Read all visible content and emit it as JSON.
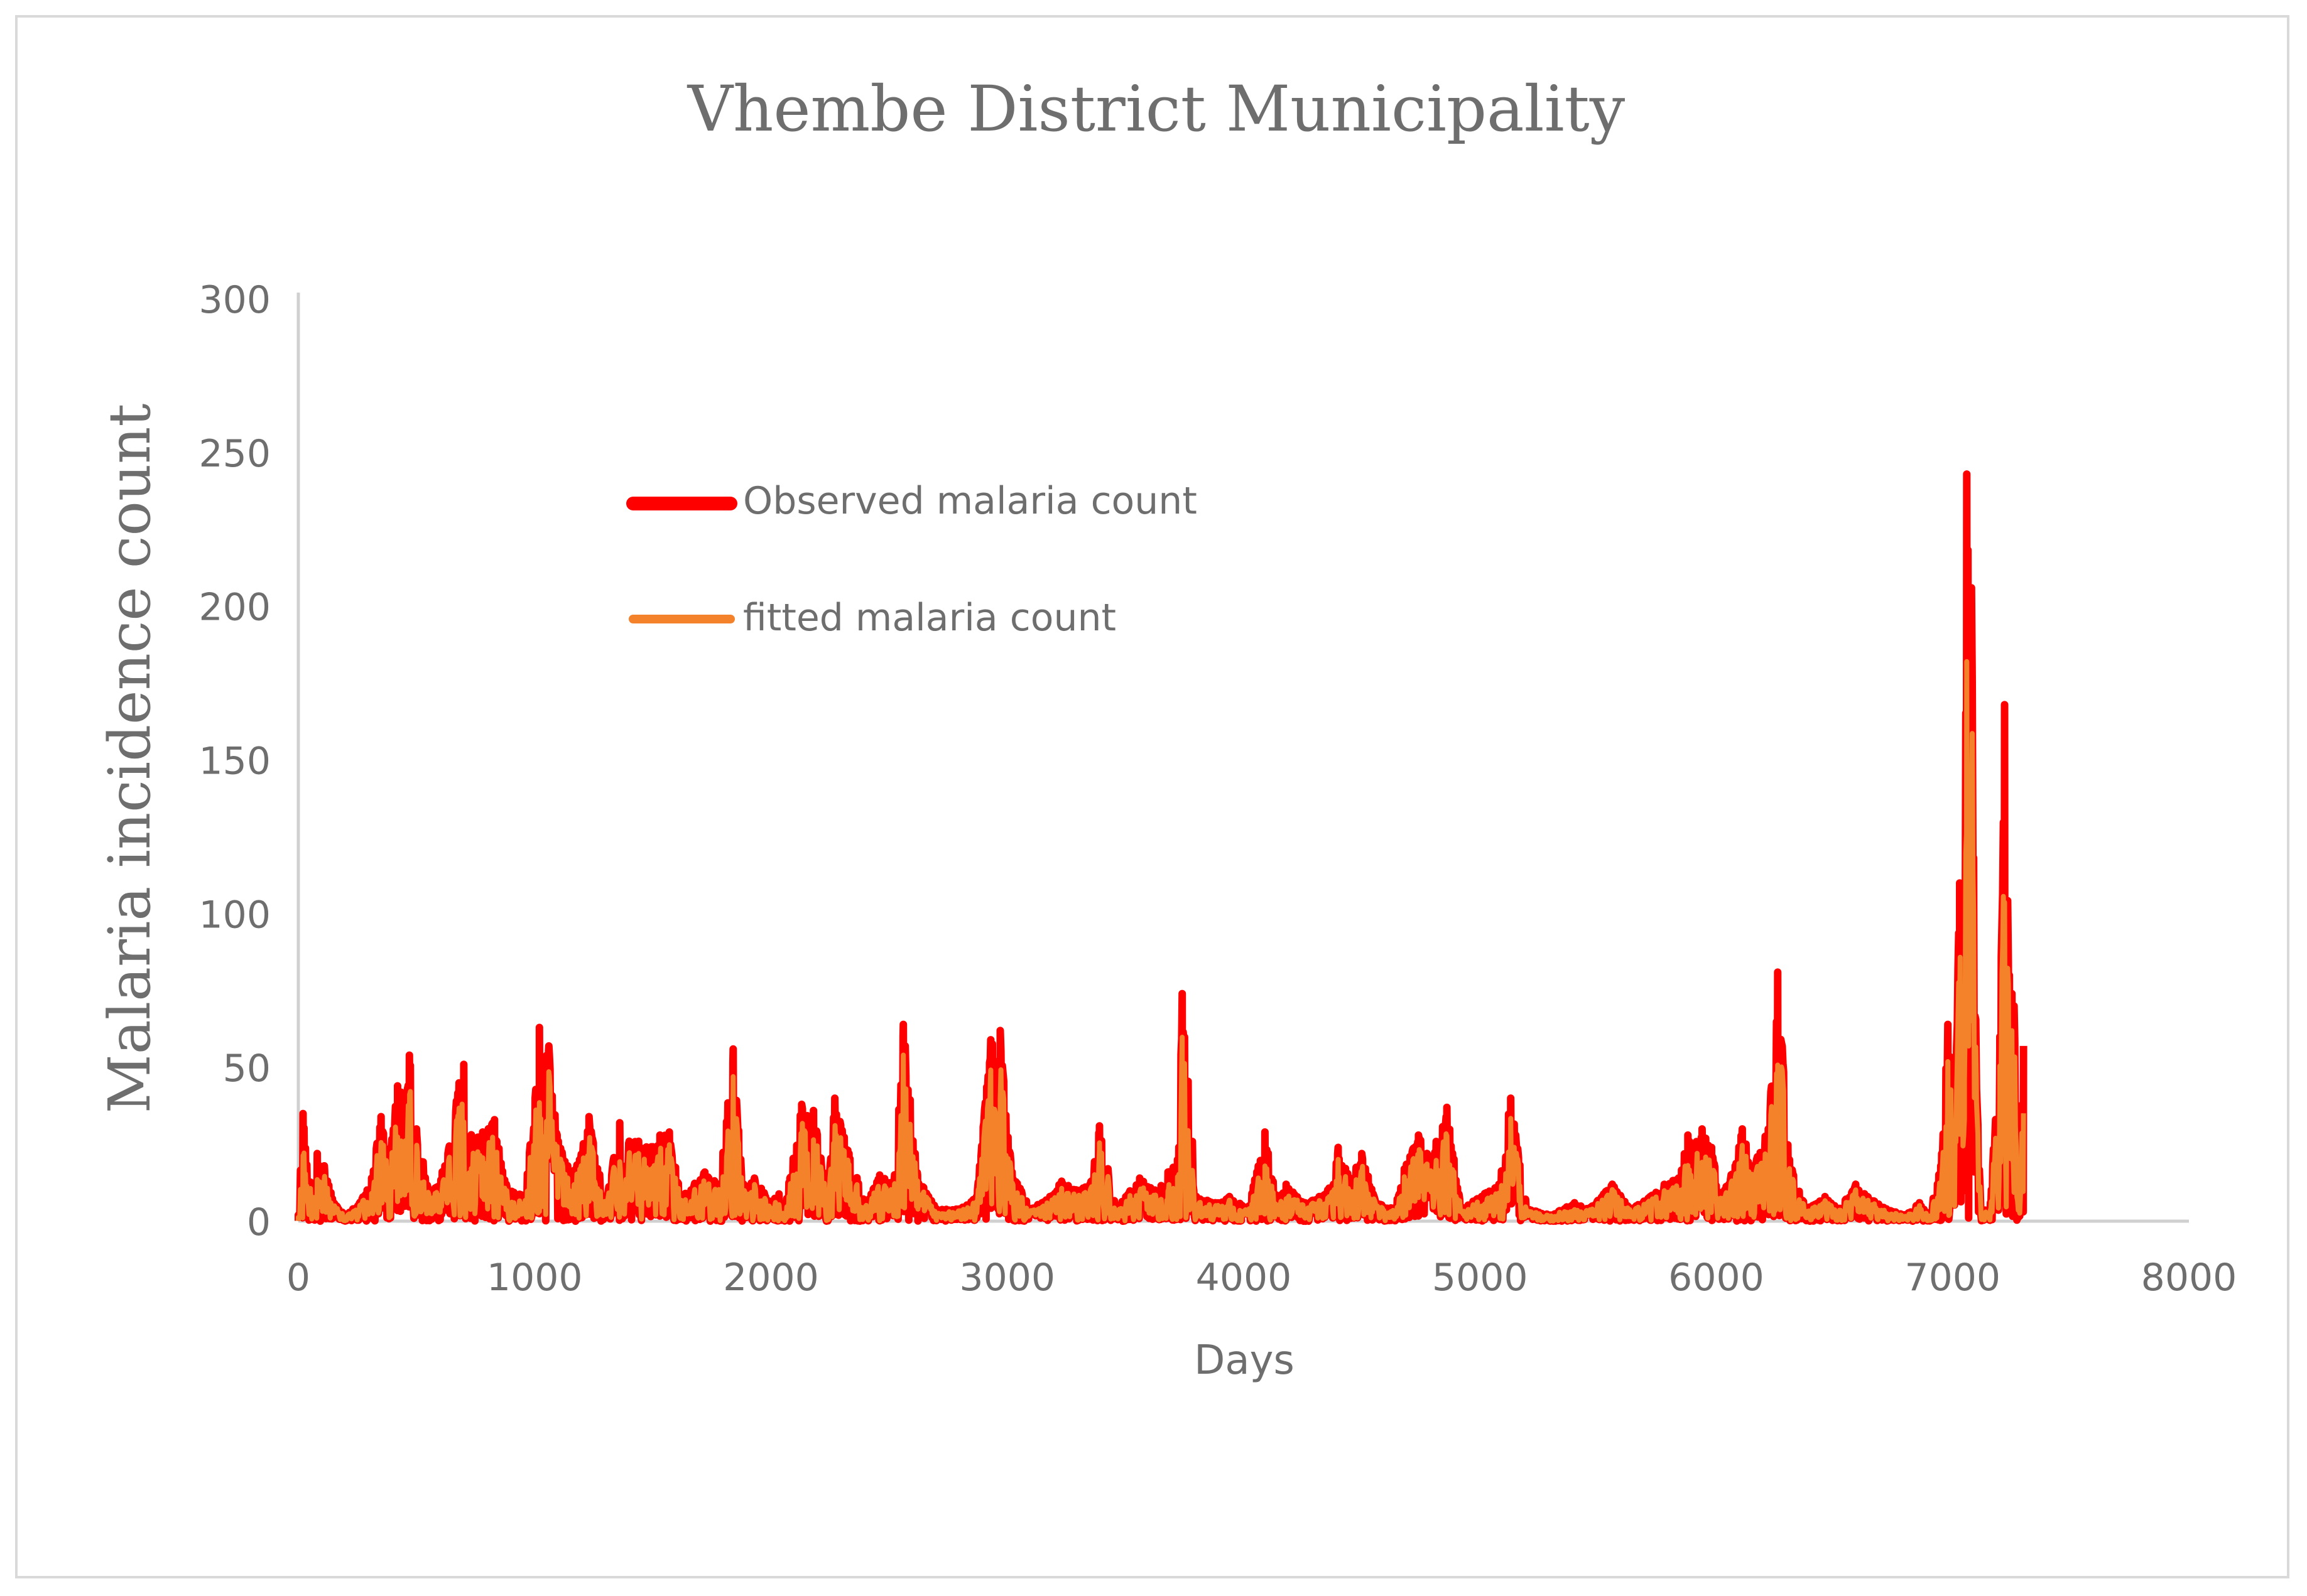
{
  "chart_data": {
    "type": "line",
    "title": "Vhembe District Municipality",
    "xlabel": "Days",
    "ylabel": "Malaria incidence count",
    "xlim": [
      0,
      8000
    ],
    "ylim": [
      0,
      300
    ],
    "x_ticks": [
      "0",
      "1000",
      "2000",
      "3000",
      "4000",
      "5000",
      "6000",
      "7000",
      "8000"
    ],
    "y_ticks": [
      "0",
      "50",
      "100",
      "150",
      "200",
      "250",
      "300"
    ],
    "grid": false,
    "legend_position": "upper-left-inside",
    "series": [
      {
        "name": "Observed malaria count",
        "color": "#ff0000",
        "peaks": [
          [
            0,
            2
          ],
          [
            20,
            35
          ],
          [
            45,
            12
          ],
          [
            80,
            22
          ],
          [
            110,
            18
          ],
          [
            150,
            6
          ],
          [
            200,
            2
          ],
          [
            260,
            6
          ],
          [
            310,
            14
          ],
          [
            350,
            34
          ],
          [
            380,
            20
          ],
          [
            420,
            44
          ],
          [
            450,
            40
          ],
          [
            470,
            54
          ],
          [
            500,
            30
          ],
          [
            560,
            8
          ],
          [
            620,
            18
          ],
          [
            680,
            45
          ],
          [
            700,
            51
          ],
          [
            740,
            26
          ],
          [
            780,
            29
          ],
          [
            830,
            33
          ],
          [
            880,
            12
          ],
          [
            960,
            8
          ],
          [
            1020,
            63
          ],
          [
            1060,
            57
          ],
          [
            1100,
            26
          ],
          [
            1140,
            18
          ],
          [
            1190,
            20
          ],
          [
            1230,
            34
          ],
          [
            1300,
            6
          ],
          [
            1360,
            32
          ],
          [
            1400,
            26
          ],
          [
            1440,
            26
          ],
          [
            1490,
            24
          ],
          [
            1530,
            28
          ],
          [
            1570,
            29
          ],
          [
            1620,
            8
          ],
          [
            1720,
            16
          ],
          [
            1780,
            12
          ],
          [
            1840,
            56
          ],
          [
            1880,
            12
          ],
          [
            1930,
            14
          ],
          [
            2000,
            6
          ],
          [
            2080,
            14
          ],
          [
            2130,
            38
          ],
          [
            2180,
            36
          ],
          [
            2240,
            8
          ],
          [
            2270,
            40
          ],
          [
            2330,
            22
          ],
          [
            2400,
            6
          ],
          [
            2460,
            15
          ],
          [
            2520,
            12
          ],
          [
            2560,
            64
          ],
          [
            2620,
            15
          ],
          [
            2700,
            4
          ],
          [
            2800,
            4
          ],
          [
            2870,
            8
          ],
          [
            2930,
            59
          ],
          [
            2970,
            62
          ],
          [
            3020,
            16
          ],
          [
            3100,
            4
          ],
          [
            3180,
            8
          ],
          [
            3230,
            13
          ],
          [
            3300,
            10
          ],
          [
            3350,
            12
          ],
          [
            3390,
            31
          ],
          [
            3460,
            4
          ],
          [
            3560,
            14
          ],
          [
            3620,
            10
          ],
          [
            3680,
            16
          ],
          [
            3720,
            20
          ],
          [
            3740,
            74
          ],
          [
            3800,
            8
          ],
          [
            3880,
            6
          ],
          [
            3940,
            8
          ],
          [
            4020,
            4
          ],
          [
            4090,
            29
          ],
          [
            4140,
            6
          ],
          [
            4180,
            12
          ],
          [
            4260,
            6
          ],
          [
            4320,
            8
          ],
          [
            4380,
            12
          ],
          [
            4400,
            24
          ],
          [
            4450,
            14
          ],
          [
            4500,
            22
          ],
          [
            4560,
            6
          ],
          [
            4640,
            4
          ],
          [
            4680,
            17
          ],
          [
            4740,
            28
          ],
          [
            4790,
            20
          ],
          [
            4860,
            37
          ],
          [
            4920,
            4
          ],
          [
            5020,
            9
          ],
          [
            5080,
            12
          ],
          [
            5130,
            40
          ],
          [
            5200,
            4
          ],
          [
            5300,
            2
          ],
          [
            5400,
            6
          ],
          [
            5460,
            4
          ],
          [
            5560,
            12
          ],
          [
            5640,
            4
          ],
          [
            5720,
            8
          ],
          [
            5780,
            12
          ],
          [
            5840,
            14
          ],
          [
            5880,
            28
          ],
          [
            5940,
            30
          ],
          [
            5980,
            24
          ],
          [
            6020,
            8
          ],
          [
            6080,
            18
          ],
          [
            6110,
            30
          ],
          [
            6150,
            18
          ],
          [
            6220,
            30
          ],
          [
            6260,
            81
          ],
          [
            6310,
            20
          ],
          [
            6380,
            4
          ],
          [
            6460,
            8
          ],
          [
            6520,
            4
          ],
          [
            6590,
            12
          ],
          [
            6640,
            8
          ],
          [
            6720,
            4
          ],
          [
            6800,
            2
          ],
          [
            6860,
            6
          ],
          [
            6900,
            2
          ],
          [
            6950,
            18
          ],
          [
            6980,
            64
          ],
          [
            7010,
            38
          ],
          [
            7030,
            110
          ],
          [
            7050,
            60
          ],
          [
            7060,
            243
          ],
          [
            7080,
            206
          ],
          [
            7100,
            50
          ],
          [
            7120,
            2
          ],
          [
            7160,
            6
          ],
          [
            7200,
            60
          ],
          [
            7220,
            168
          ],
          [
            7240,
            80
          ],
          [
            7260,
            70
          ],
          [
            7280,
            6
          ],
          [
            7300,
            57
          ]
        ]
      },
      {
        "name": "fitted malaria count",
        "color": "#f4822a",
        "scale": 0.86
      }
    ]
  }
}
